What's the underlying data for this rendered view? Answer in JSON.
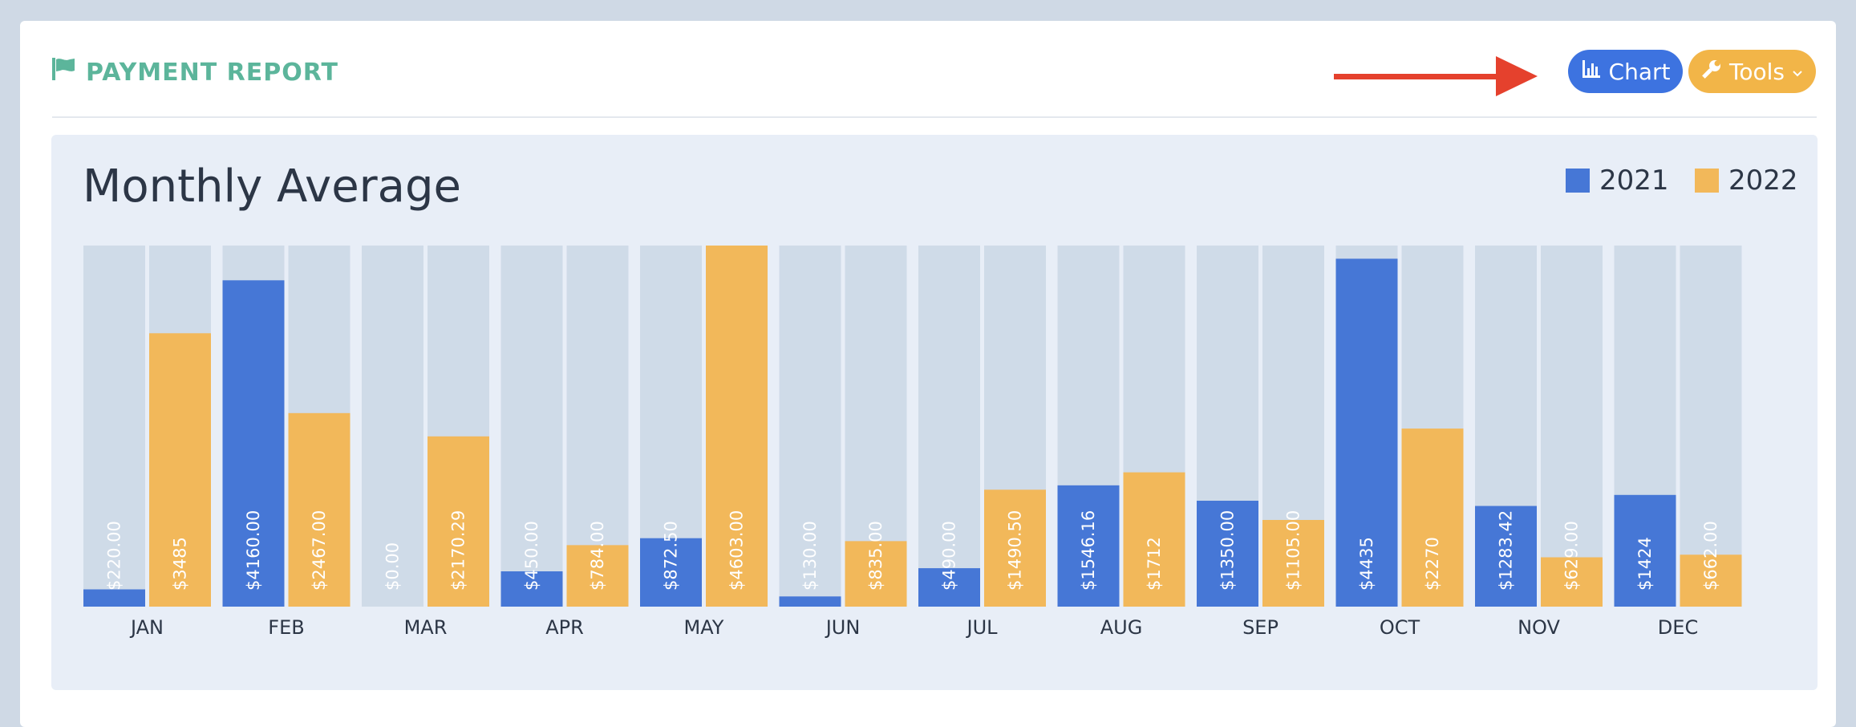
{
  "header": {
    "title": "PAYMENT REPORT",
    "flag_icon": "flag-icon",
    "title_color": "#5cb59b"
  },
  "toolbar": {
    "chart_label": "Chart",
    "tools_label": "Tools",
    "chart_color": "#3d73e0",
    "tools_color": "#f2b548",
    "annotation_arrow_color": "#e5412d"
  },
  "chart_data": {
    "type": "bar",
    "title": "Monthly Average",
    "categories": [
      "JAN",
      "FEB",
      "MAR",
      "APR",
      "MAY",
      "JUN",
      "JUL",
      "AUG",
      "SEP",
      "OCT",
      "NOV",
      "DEC"
    ],
    "series": [
      {
        "name": "2021",
        "color": "#4677d6",
        "values": [
          220.0,
          4160.0,
          0.0,
          450.0,
          872.5,
          130.0,
          490.0,
          1546.16,
          1350.0,
          4435,
          1283.42,
          1424
        ],
        "labels": [
          "$220.00",
          "$4160.00",
          "$0.00",
          "$450.00",
          "$872.50",
          "$130.00",
          "$490.00",
          "$1546.16",
          "$1350.00",
          "$4435",
          "$1283.42",
          "$1424"
        ]
      },
      {
        "name": "2022",
        "color": "#f2b85a",
        "values": [
          3485,
          2467.0,
          2170.29,
          784.0,
          4603.0,
          835.0,
          1490.5,
          1712,
          1105.0,
          2270,
          629.0,
          662.0
        ],
        "labels": [
          "$3485",
          "$2467.00",
          "$2170.29",
          "$784.00",
          "$4603.00",
          "$835.00",
          "$1490.50",
          "$1712",
          "$1105.00",
          "$2270",
          "$629.00",
          "$662.00"
        ]
      }
    ],
    "ylim": [
      0,
      4603
    ],
    "background_bar_color": "#cfdbe8",
    "legend_position": "top-right",
    "grid": false
  }
}
